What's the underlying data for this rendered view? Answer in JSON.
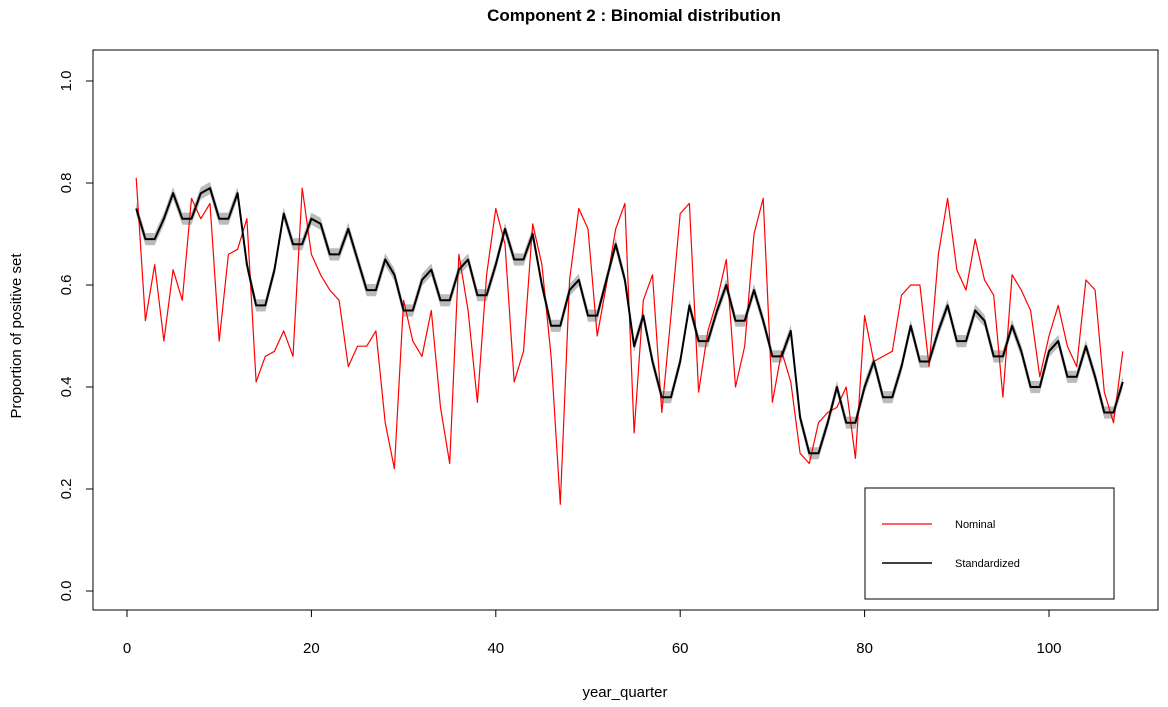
{
  "chart_data": {
    "type": "line",
    "title": "Component 2 : Binomial distribution",
    "xlabel": "year_quarter",
    "ylabel": "Proportion of positive set",
    "xlim": [
      1,
      108
    ],
    "ylim": [
      0.0,
      1.0
    ],
    "x_ticks": [
      "0",
      "20",
      "40",
      "60",
      "80",
      "100"
    ],
    "y_ticks": [
      "0.0",
      "0.2",
      "0.4",
      "0.6",
      "0.8",
      "1.0"
    ],
    "legend_position": "bottom-right",
    "series": [
      {
        "name": "Nominal",
        "color": "#ff0000",
        "values": [
          0.81,
          0.53,
          0.64,
          0.49,
          0.63,
          0.57,
          0.77,
          0.73,
          0.76,
          0.49,
          0.66,
          0.67,
          0.73,
          0.41,
          0.46,
          0.47,
          0.51,
          0.46,
          0.79,
          0.66,
          0.62,
          0.59,
          0.57,
          0.44,
          0.48,
          0.48,
          0.51,
          0.33,
          0.24,
          0.57,
          0.49,
          0.46,
          0.55,
          0.36,
          0.25,
          0.66,
          0.55,
          0.37,
          0.62,
          0.75,
          0.68,
          0.41,
          0.47,
          0.72,
          0.64,
          0.46,
          0.17,
          0.61,
          0.75,
          0.71,
          0.5,
          0.6,
          0.71,
          0.76,
          0.31,
          0.57,
          0.62,
          0.35,
          0.54,
          0.74,
          0.76,
          0.39,
          0.51,
          0.57,
          0.65,
          0.4,
          0.48,
          0.7,
          0.77,
          0.37,
          0.47,
          0.41,
          0.27,
          0.25,
          0.33,
          0.35,
          0.36,
          0.4,
          0.26,
          0.54,
          0.45,
          0.46,
          0.47,
          0.58,
          0.6,
          0.6,
          0.44,
          0.66,
          0.77,
          0.63,
          0.59,
          0.69,
          0.61,
          0.58,
          0.38,
          0.62,
          0.59,
          0.55,
          0.42,
          0.5,
          0.56,
          0.48,
          0.44,
          0.61,
          0.59,
          0.39,
          0.33,
          0.47
        ]
      },
      {
        "name": "Standardized",
        "color": "#000000",
        "values": [
          0.75,
          0.69,
          0.69,
          0.73,
          0.78,
          0.73,
          0.73,
          0.78,
          0.79,
          0.73,
          0.73,
          0.78,
          0.64,
          0.56,
          0.56,
          0.63,
          0.74,
          0.68,
          0.68,
          0.73,
          0.72,
          0.66,
          0.66,
          0.71,
          0.65,
          0.59,
          0.59,
          0.65,
          0.62,
          0.55,
          0.55,
          0.61,
          0.63,
          0.57,
          0.57,
          0.63,
          0.65,
          0.58,
          0.58,
          0.64,
          0.71,
          0.65,
          0.65,
          0.7,
          0.6,
          0.52,
          0.52,
          0.59,
          0.61,
          0.54,
          0.54,
          0.61,
          0.68,
          0.61,
          0.48,
          0.54,
          0.45,
          0.38,
          0.38,
          0.45,
          0.56,
          0.49,
          0.49,
          0.55,
          0.6,
          0.53,
          0.53,
          0.59,
          0.53,
          0.46,
          0.46,
          0.51,
          0.34,
          0.27,
          0.27,
          0.33,
          0.4,
          0.33,
          0.33,
          0.4,
          0.45,
          0.38,
          0.38,
          0.44,
          0.52,
          0.45,
          0.45,
          0.51,
          0.56,
          0.49,
          0.49,
          0.55,
          0.53,
          0.46,
          0.46,
          0.52,
          0.47,
          0.4,
          0.4,
          0.47,
          0.49,
          0.42,
          0.42,
          0.48,
          0.42,
          0.35,
          0.35,
          0.41
        ]
      }
    ],
    "ribbon": {
      "series": "Standardized",
      "color": "#bbbbbb",
      "half_width": 0.012
    }
  }
}
